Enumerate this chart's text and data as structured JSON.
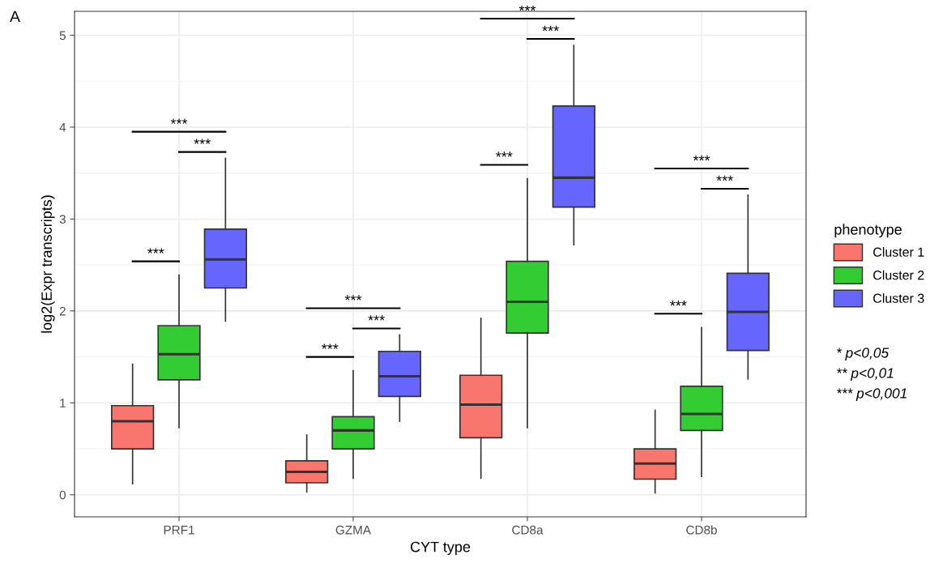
{
  "chart_data": {
    "type": "box",
    "xlabel": "CYT type",
    "ylabel": "log2(Expr transcripts)",
    "legend_title": "phenotype",
    "categories": [
      "PRF1",
      "GZMA",
      "CD8a",
      "CD8b"
    ],
    "series": [
      {
        "name": "Cluster 1",
        "color": "#f8766d",
        "boxes": [
          {
            "low": 0.12,
            "q1": 0.5,
            "median": 0.8,
            "q3": 0.97,
            "high": 1.42
          },
          {
            "low": 0.03,
            "q1": 0.13,
            "median": 0.25,
            "q3": 0.37,
            "high": 0.65
          },
          {
            "low": 0.18,
            "q1": 0.62,
            "median": 0.98,
            "q3": 1.3,
            "high": 1.92
          },
          {
            "low": 0.02,
            "q1": 0.17,
            "median": 0.34,
            "q3": 0.5,
            "high": 0.92
          }
        ]
      },
      {
        "name": "Cluster 2",
        "color": "#33cc33",
        "boxes": [
          {
            "low": 0.73,
            "q1": 1.25,
            "median": 1.53,
            "q3": 1.84,
            "high": 2.39
          },
          {
            "low": 0.18,
            "q1": 0.5,
            "median": 0.7,
            "q3": 0.85,
            "high": 1.35
          },
          {
            "low": 0.73,
            "q1": 1.76,
            "median": 2.1,
            "q3": 2.54,
            "high": 3.44
          },
          {
            "low": 0.2,
            "q1": 0.7,
            "median": 0.88,
            "q3": 1.18,
            "high": 1.82
          }
        ]
      },
      {
        "name": "Cluster 3",
        "color": "#6666ff",
        "boxes": [
          {
            "low": 1.89,
            "q1": 2.25,
            "median": 2.56,
            "q3": 2.89,
            "high": 3.66
          },
          {
            "low": 0.8,
            "q1": 1.07,
            "median": 1.29,
            "q3": 1.56,
            "high": 1.74
          },
          {
            "low": 2.72,
            "q1": 3.13,
            "median": 3.45,
            "q3": 4.23,
            "high": 4.89
          },
          {
            "low": 1.26,
            "q1": 1.57,
            "median": 1.99,
            "q3": 2.41,
            "high": 3.26
          }
        ]
      }
    ],
    "ylim": [
      -0.24,
      5.26
    ],
    "yticks": [
      0,
      1,
      2,
      3,
      4,
      5
    ],
    "grid": true,
    "legend": "right",
    "annotations": [
      "A",
      "* p<0,05",
      "** p<0,01",
      "*** p<0,001",
      "***",
      "***",
      "***",
      "***",
      "***",
      "***",
      "***",
      "***",
      "***",
      "***",
      "***",
      "***"
    ]
  }
}
